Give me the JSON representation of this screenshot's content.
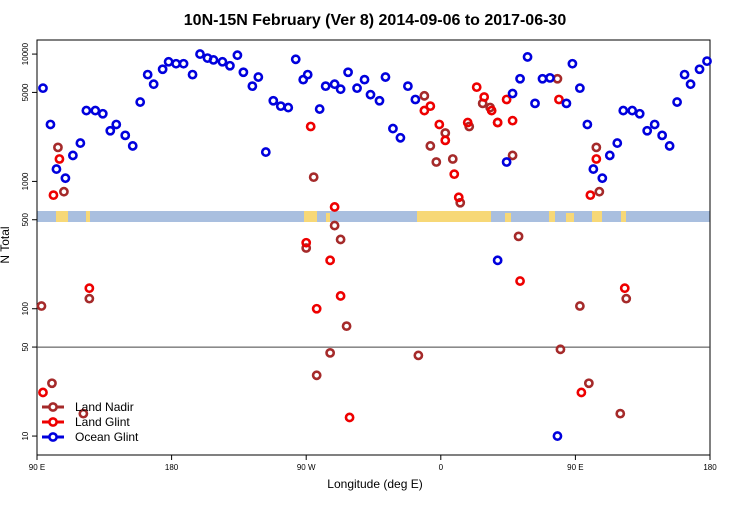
{
  "chart_data": {
    "type": "scatter",
    "title": "10N-15N February (Ver 8)   2014-09-06 to 2017-06-30",
    "x_label": "Longitude (deg E)",
    "y_label": "N Total",
    "log_y": true,
    "xlim": [
      90,
      540
    ],
    "ylim": [
      7.1,
      12900
    ],
    "xticks": [
      {
        "value": 90,
        "label": "90 E"
      },
      180,
      {
        "value": 270,
        "label": "90 W"
      },
      {
        "value": 360,
        "label": "0"
      },
      {
        "value": 450,
        "label": "90 E"
      },
      {
        "value": 540,
        "label": "180"
      }
    ],
    "yticks": [
      10,
      50,
      100,
      500,
      1000,
      5000,
      10000
    ],
    "hlines": [
      50
    ],
    "legend_position": "bottom-left",
    "series": [
      {
        "name": "Land Nadir",
        "color": "#a52a2a",
        "x": [
          93,
          100,
          104,
          108,
          121,
          125,
          275,
          270,
          277,
          286,
          289,
          293,
          297,
          345,
          349,
          353,
          357,
          363,
          368,
          373,
          379,
          388,
          393,
          398,
          408,
          412,
          438,
          440,
          453,
          459,
          464,
          466,
          480,
          484
        ],
        "values": [
          105,
          26,
          1850,
          830,
          15,
          120,
          1080,
          300,
          30,
          45,
          450,
          350,
          73,
          43,
          4700,
          1900,
          1420,
          2400,
          1500,
          680,
          2700,
          4100,
          3800,
          2900,
          1600,
          370,
          6400,
          48,
          105,
          26,
          1850,
          830,
          15,
          120
        ]
      },
      {
        "name": "Land Glint",
        "color": "#ee0000",
        "x": [
          101,
          105,
          273,
          270,
          125,
          277,
          286,
          289,
          293,
          299,
          349,
          353,
          359,
          363,
          369,
          372,
          378,
          384,
          389,
          394,
          398,
          404,
          408,
          413,
          439,
          460,
          464,
          483,
          94,
          454
        ],
        "values": [
          780,
          1500,
          2700,
          330,
          145,
          100,
          240,
          630,
          126,
          14,
          3600,
          3900,
          2800,
          2100,
          1140,
          750,
          2900,
          5500,
          4600,
          3600,
          2900,
          4400,
          3000,
          165,
          4400,
          780,
          1500,
          145,
          22,
          22
        ]
      },
      {
        "name": "Ocean Glint",
        "color": "#0000dd",
        "x": [
          94,
          99,
          103,
          109,
          114,
          119,
          123,
          129,
          134,
          139,
          143,
          149,
          154,
          159,
          164,
          168,
          174,
          178,
          183,
          188,
          194,
          199,
          204,
          208,
          214,
          219,
          224,
          228,
          234,
          238,
          243,
          248,
          253,
          258,
          263,
          268,
          271,
          279,
          283,
          289,
          293,
          298,
          304,
          309,
          313,
          319,
          323,
          328,
          333,
          338,
          343,
          398,
          404,
          408,
          413,
          418,
          423,
          428,
          433,
          444,
          448,
          453,
          458,
          462,
          468,
          473,
          478,
          482,
          488,
          493,
          498,
          503,
          508,
          513,
          518,
          523,
          527,
          533,
          538,
          438
        ],
        "values": [
          5400,
          2800,
          1250,
          1060,
          1600,
          2000,
          3600,
          3600,
          3400,
          2500,
          2800,
          2300,
          1900,
          4200,
          6900,
          5800,
          7600,
          8700,
          8400,
          8400,
          6900,
          10000,
          9300,
          9000,
          8700,
          8100,
          9800,
          7200,
          5600,
          6600,
          1700,
          4300,
          3900,
          3800,
          9100,
          6300,
          6900,
          3700,
          5600,
          5800,
          5300,
          7200,
          5400,
          6300,
          4800,
          4300,
          6600,
          2600,
          2200,
          5600,
          4400,
          240,
          1420,
          4900,
          6400,
          9500,
          4100,
          6400,
          6500,
          4100,
          8400,
          5400,
          2800,
          1250,
          1060,
          1600,
          2000,
          3600,
          3600,
          3400,
          2500,
          2800,
          2300,
          1900,
          4200,
          6900,
          5800,
          7600,
          8800,
          10
        ]
      }
    ]
  }
}
